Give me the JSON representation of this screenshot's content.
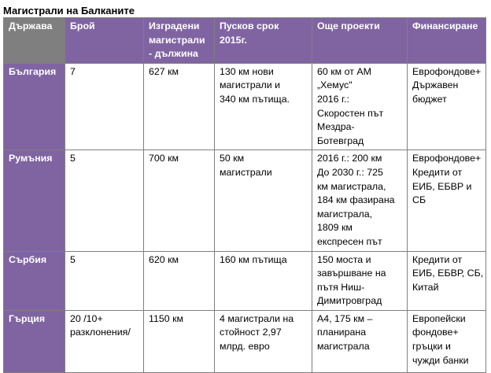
{
  "title": "Магистрали на Балканите",
  "headers": [
    [
      "Държава"
    ],
    [
      "Брой"
    ],
    [
      "Изградени",
      "магистрали",
      "- дължина"
    ],
    [
      "Пусков срок",
      "2015г."
    ],
    [
      "Още проекти"
    ],
    [
      "Финансиране"
    ]
  ],
  "rows": [
    {
      "country": "България",
      "count": [
        "7"
      ],
      "built": [
        "627 км"
      ],
      "deadline": [
        "130 км нови",
        "магистрали и",
        "340 км пътища."
      ],
      "projects": [
        "60 км от АМ",
        "„Хемус\"",
        "2016 г.:",
        "Скоростен път",
        "Мездра-",
        "Ботевград"
      ],
      "funding": [
        "Еврофондове+",
        "Държавен",
        "бюджет"
      ]
    },
    {
      "country": "Румъния",
      "count": [
        "5"
      ],
      "built": [
        "700 км"
      ],
      "deadline": [
        "50 км",
        "магистрали"
      ],
      "projects": [
        "2016 г.: 200 км",
        "До 2030 г.: 725",
        "км магистрала,",
        "184 км фазирана",
        "магистрала,",
        "1809 км",
        "експресен път"
      ],
      "funding": [
        "Еврофондове+",
        "Кредити от",
        "ЕИБ, ЕБВР и",
        "СБ"
      ]
    },
    {
      "country": "Сърбия",
      "count": [
        "5"
      ],
      "built": [
        "620 км"
      ],
      "deadline": [
        "160 км пътища"
      ],
      "projects": [
        "150 моста и",
        "завършване на",
        "пътя Ниш-",
        "Димитровград"
      ],
      "funding": [
        "Кредити от",
        "ЕИБ, ЕБВР, СБ,",
        "Китай"
      ]
    },
    {
      "country": "Гърция",
      "count": [
        "20 /10+",
        "разклонения/"
      ],
      "built": [
        "1150 км"
      ],
      "deadline": [
        "4 магистрали на",
        "стойност 2,97",
        "млрд. евро"
      ],
      "projects": [
        "А4, 175 км –",
        "планирана",
        "магистрала"
      ],
      "funding": [
        "Европейски",
        "фондове+",
        "гръцки и",
        "чужди банки"
      ]
    }
  ]
}
